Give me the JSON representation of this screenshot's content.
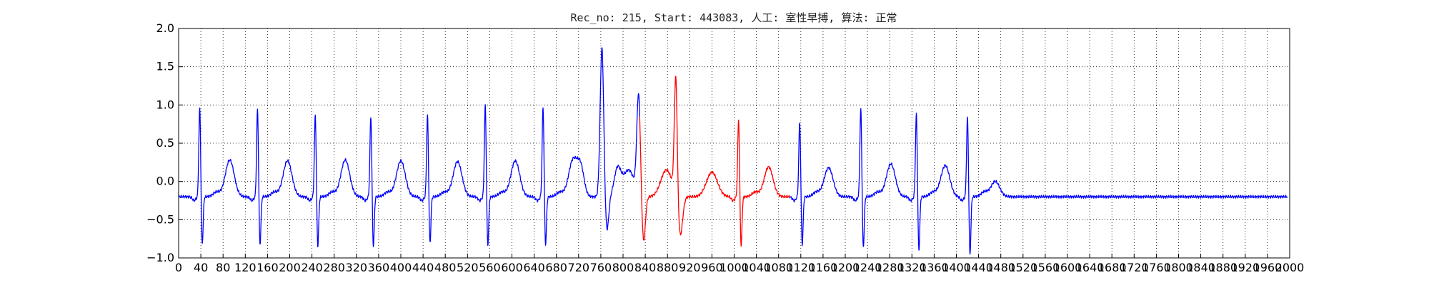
{
  "chart_data": {
    "type": "line",
    "title": "Rec_no: 215, Start: 443083, 人工: 室性早搏, 算法: 正常",
    "xlabel": "",
    "ylabel": "",
    "xlim": [
      0,
      2000
    ],
    "ylim": [
      -1.0,
      2.0
    ],
    "yticks": [
      -1.0,
      -0.5,
      0.0,
      0.5,
      1.0,
      1.5,
      2.0
    ],
    "ytick_labels": [
      "−1.0",
      "−0.5",
      "0.0",
      "0.5",
      "1.0",
      "1.5",
      "2.0"
    ],
    "xticks": [
      0,
      40,
      80,
      120,
      160,
      200,
      240,
      280,
      320,
      360,
      400,
      440,
      480,
      520,
      560,
      600,
      640,
      680,
      720,
      760,
      800,
      840,
      880,
      920,
      960,
      1000,
      1040,
      1080,
      1120,
      1160,
      1200,
      1240,
      1280,
      1320,
      1360,
      1400,
      1440,
      1480,
      1520,
      1560,
      1600,
      1640,
      1680,
      1720,
      1760,
      1800,
      1840,
      1880,
      1920,
      1960,
      2000
    ],
    "xtick_labels": [
      "0",
      "40",
      "80",
      "120",
      "160",
      "200",
      "240",
      "280",
      "320",
      "360",
      "400",
      "440",
      "480",
      "520",
      "560",
      "600",
      "640",
      "680",
      "720",
      "760",
      "800",
      "840",
      "880",
      "920",
      "960",
      "1000",
      "1040",
      "1080",
      "1120",
      "1160",
      "1200",
      "1240",
      "1280",
      "1320",
      "1360",
      "1400",
      "1440",
      "1480",
      "1520",
      "1560",
      "1600",
      "1640",
      "1680",
      "1720",
      "1760",
      "1800",
      "1840",
      "1880",
      "1920",
      "1960",
      "2000"
    ],
    "grid": true,
    "grid_style": "dotted",
    "series_colors": [
      "#0000ff",
      "#ff0000"
    ],
    "segments": [
      {
        "color": "#0000ff",
        "x_range": [
          0,
          830
        ]
      },
      {
        "color": "#ff0000",
        "x_range": [
          830,
          1100
        ]
      },
      {
        "color": "#0000ff",
        "x_range": [
          1100,
          1996
        ]
      }
    ],
    "baseline": -0.2,
    "t_wave_baseline": -0.15,
    "beats": [
      {
        "x": 38,
        "r_peak": 0.97,
        "s_trough": -0.83,
        "t_peak": 0.28,
        "t_x": 92,
        "type": "normal"
      },
      {
        "x": 142,
        "r_peak": 0.95,
        "s_trough": -0.84,
        "t_peak": 0.27,
        "t_x": 196,
        "type": "normal"
      },
      {
        "x": 246,
        "r_peak": 0.88,
        "s_trough": -0.86,
        "t_peak": 0.28,
        "t_x": 300,
        "type": "normal"
      },
      {
        "x": 346,
        "r_peak": 0.86,
        "s_trough": -0.86,
        "t_peak": 0.27,
        "t_x": 400,
        "type": "normal"
      },
      {
        "x": 448,
        "r_peak": 0.87,
        "s_trough": -0.82,
        "t_peak": 0.26,
        "t_x": 502,
        "type": "normal"
      },
      {
        "x": 552,
        "r_peak": 1.0,
        "s_trough": -0.85,
        "t_peak": 0.27,
        "t_x": 606,
        "type": "normal"
      },
      {
        "x": 656,
        "r_peak": 0.98,
        "s_trough": -0.84,
        "t_peak": 0.28,
        "t_x": 710,
        "type": "normal"
      },
      {
        "x": 762,
        "r_peak": 1.75,
        "s_trough": -0.65,
        "t_peak": 0.05,
        "t_x": 810,
        "type": "pvc"
      },
      {
        "x": 828,
        "r_peak": 1.09,
        "s_trough": -0.8,
        "t_peak": 0.05,
        "t_x": 878,
        "type": "pvc"
      },
      {
        "x": 895,
        "r_peak": 1.37,
        "s_trough": -0.72,
        "t_peak": -0.1,
        "t_x": 960,
        "type": "wide"
      },
      {
        "x": 1008,
        "r_peak": 0.82,
        "s_trough": -0.86,
        "t_peak": 0.19,
        "t_x": 1062,
        "type": "normal"
      },
      {
        "x": 1118,
        "r_peak": 0.78,
        "s_trough": -0.84,
        "t_peak": 0.18,
        "t_x": 1170,
        "type": "normal"
      },
      {
        "x": 1228,
        "r_peak": 0.96,
        "s_trough": -0.88,
        "t_peak": 0.23,
        "t_x": 1282,
        "type": "normal"
      },
      {
        "x": 1328,
        "r_peak": 0.89,
        "s_trough": -0.92,
        "t_peak": 0.21,
        "t_x": 1380,
        "type": "normal"
      },
      {
        "x": 1420,
        "r_peak": 0.85,
        "s_trough": -0.97,
        "t_peak": 0.0,
        "t_x": 1470,
        "type": "normal"
      }
    ]
  }
}
